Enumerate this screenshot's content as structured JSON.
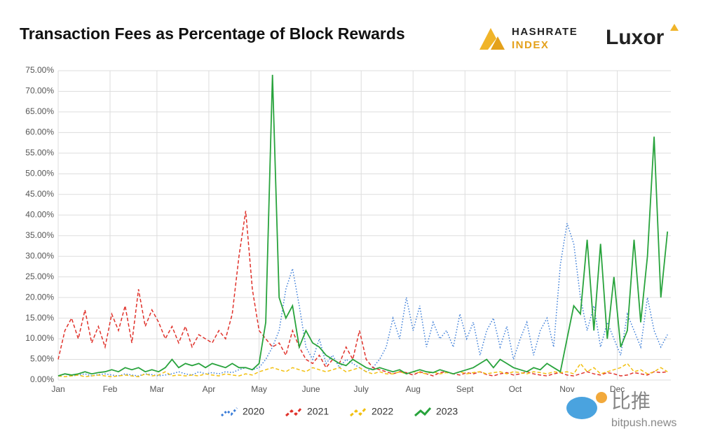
{
  "chart_data": {
    "type": "line",
    "title": "Transaction Fees as Percentage of Block Rewards",
    "logos": [
      "HASHRATE",
      "INDEX",
      "Luxor"
    ],
    "watermark": [
      "比推",
      "bitpush.news"
    ],
    "grid": true,
    "legend": "bottom",
    "xlim": [
      0,
      366
    ],
    "xticks": [
      {
        "value": 0,
        "label": "Jan"
      },
      {
        "value": 31,
        "label": "Feb"
      },
      {
        "value": 59,
        "label": "Mar"
      },
      {
        "value": 90,
        "label": "Apr"
      },
      {
        "value": 120,
        "label": "May"
      },
      {
        "value": 151,
        "label": "June"
      },
      {
        "value": 181,
        "label": "July"
      },
      {
        "value": 212,
        "label": "Aug"
      },
      {
        "value": 243,
        "label": "Sept"
      },
      {
        "value": 273,
        "label": "Oct"
      },
      {
        "value": 304,
        "label": "Nov"
      },
      {
        "value": 334,
        "label": "Dec"
      }
    ],
    "ylim": [
      0,
      75
    ],
    "yticks": [
      {
        "value": 0,
        "label": "0.00%"
      },
      {
        "value": 5,
        "label": "5.00%"
      },
      {
        "value": 10,
        "label": "10.00%"
      },
      {
        "value": 15,
        "label": "15.00%"
      },
      {
        "value": 20,
        "label": "20.00%"
      },
      {
        "value": 25,
        "label": "25.00%"
      },
      {
        "value": 30,
        "label": "30.00%"
      },
      {
        "value": 35,
        "label": "35.00%"
      },
      {
        "value": 40,
        "label": "40.00%"
      },
      {
        "value": 45,
        "label": "45.00%"
      },
      {
        "value": 50,
        "label": "50.00%"
      },
      {
        "value": 55,
        "label": "55.00%"
      },
      {
        "value": 60,
        "label": "60.00%"
      },
      {
        "value": 65,
        "label": "65.00%"
      },
      {
        "value": 70,
        "label": "70.00%"
      },
      {
        "value": 75,
        "label": "75.00%"
      }
    ],
    "x": [
      0,
      4,
      8,
      12,
      16,
      20,
      24,
      28,
      32,
      36,
      40,
      44,
      48,
      52,
      56,
      60,
      64,
      68,
      72,
      76,
      80,
      84,
      88,
      92,
      96,
      100,
      104,
      108,
      112,
      116,
      120,
      124,
      128,
      132,
      136,
      140,
      144,
      148,
      152,
      156,
      160,
      164,
      168,
      172,
      176,
      180,
      184,
      188,
      192,
      196,
      200,
      204,
      208,
      212,
      216,
      220,
      224,
      228,
      232,
      236,
      240,
      244,
      248,
      252,
      256,
      260,
      264,
      268,
      272,
      276,
      280,
      284,
      288,
      292,
      296,
      300,
      304,
      308,
      312,
      316,
      320,
      324,
      328,
      332,
      336,
      340,
      344,
      348,
      352,
      356,
      360,
      364
    ],
    "series": [
      {
        "name": "2020",
        "color": "#3b7dd8",
        "style": "dotted",
        "values": [
          1,
          1.5,
          1,
          1.2,
          1.5,
          1,
          1.3,
          1.5,
          1.2,
          1,
          1.5,
          1.2,
          1,
          1.5,
          1.3,
          1,
          1.2,
          1.5,
          2,
          1.5,
          1.2,
          2,
          1.5,
          1.8,
          1.5,
          2,
          1.8,
          2.5,
          3,
          2.5,
          3,
          5,
          8,
          12,
          22,
          27,
          18,
          8,
          5,
          10,
          4,
          6,
          3,
          5,
          4,
          3,
          2,
          3,
          5,
          8,
          15,
          10,
          20,
          12,
          18,
          8,
          14,
          10,
          12,
          8,
          16,
          10,
          14,
          6,
          12,
          15,
          8,
          13,
          5,
          10,
          14,
          6,
          12,
          15,
          8,
          28,
          38,
          33,
          20,
          12,
          18,
          8,
          14,
          10,
          6,
          16,
          12,
          8,
          20,
          12,
          8,
          11
        ]
      },
      {
        "name": "2021",
        "color": "#e0322b",
        "style": "dashed",
        "values": [
          5,
          12,
          15,
          10,
          17,
          9,
          13,
          8,
          16,
          12,
          18,
          9,
          22,
          13,
          17,
          14,
          10,
          13,
          9,
          13,
          8,
          11,
          10,
          9,
          12,
          10,
          16,
          30,
          41,
          22,
          12,
          10,
          8,
          9,
          6,
          12,
          8,
          5,
          4,
          6,
          3,
          5,
          4,
          8,
          5,
          12,
          5,
          3,
          2.5,
          2,
          1.5,
          2,
          1.8,
          1.2,
          2,
          1.5,
          1,
          1.8,
          2,
          1.5,
          1.2,
          1.8,
          1.5,
          2,
          1.3,
          1,
          1.5,
          1.8,
          1.2,
          1.5,
          2,
          1.5,
          1.2,
          1,
          1.5,
          1.8,
          1.2,
          1,
          1.5,
          2,
          1.5,
          1.2,
          1.8,
          1.5,
          1,
          1.2,
          1.8,
          1.5,
          1.2,
          2,
          1.8,
          2
        ]
      },
      {
        "name": "2022",
        "color": "#f2c010",
        "style": "dashed",
        "values": [
          1,
          0.8,
          1,
          1.2,
          0.8,
          1,
          1.2,
          1,
          0.8,
          1,
          1.2,
          1,
          0.8,
          1.5,
          1,
          1.2,
          2,
          1,
          1.2,
          1,
          1.2,
          1,
          1.5,
          1.2,
          1,
          1.5,
          1.2,
          1,
          1.5,
          1.2,
          2,
          2.5,
          3,
          2.5,
          2,
          3,
          2.5,
          2,
          3,
          2.5,
          2,
          2.5,
          3,
          2,
          2.5,
          3,
          2,
          1.5,
          2,
          1.5,
          1.5,
          2,
          1.5,
          2,
          1.8,
          1.5,
          2,
          1.5,
          1.8,
          1.5,
          2,
          1.5,
          1.8,
          2,
          1.5,
          1.8,
          2,
          1.5,
          2,
          1.8,
          1.5,
          2,
          1.8,
          1.5,
          2,
          1.8,
          2,
          1.5,
          4,
          2,
          3,
          1.5,
          2,
          2.5,
          3,
          4,
          2,
          2.5,
          1.5,
          2,
          3,
          2
        ]
      },
      {
        "name": "2023",
        "color": "#28a33c",
        "style": "solid",
        "values": [
          1,
          1.5,
          1.2,
          1.5,
          2,
          1.5,
          1.8,
          2,
          2.5,
          2,
          3,
          2.5,
          3,
          2,
          2.5,
          2,
          3,
          5,
          3,
          4,
          3.5,
          4,
          3,
          4,
          3.5,
          3,
          4,
          3,
          3,
          2.5,
          4,
          14,
          74,
          20,
          15,
          18,
          8,
          12,
          9,
          8,
          6,
          5,
          4,
          3.5,
          5,
          4,
          3,
          2.5,
          3,
          2.5,
          2,
          2.5,
          1.5,
          2,
          2.5,
          2,
          1.8,
          2.5,
          2,
          1.5,
          2,
          2.5,
          3,
          4,
          5,
          3,
          5,
          4,
          3,
          2.5,
          2,
          3,
          2.5,
          4,
          3,
          2,
          10,
          18,
          16,
          34,
          12,
          33,
          10,
          25,
          8,
          12,
          34,
          14,
          30,
          59,
          20,
          36
        ]
      }
    ]
  }
}
